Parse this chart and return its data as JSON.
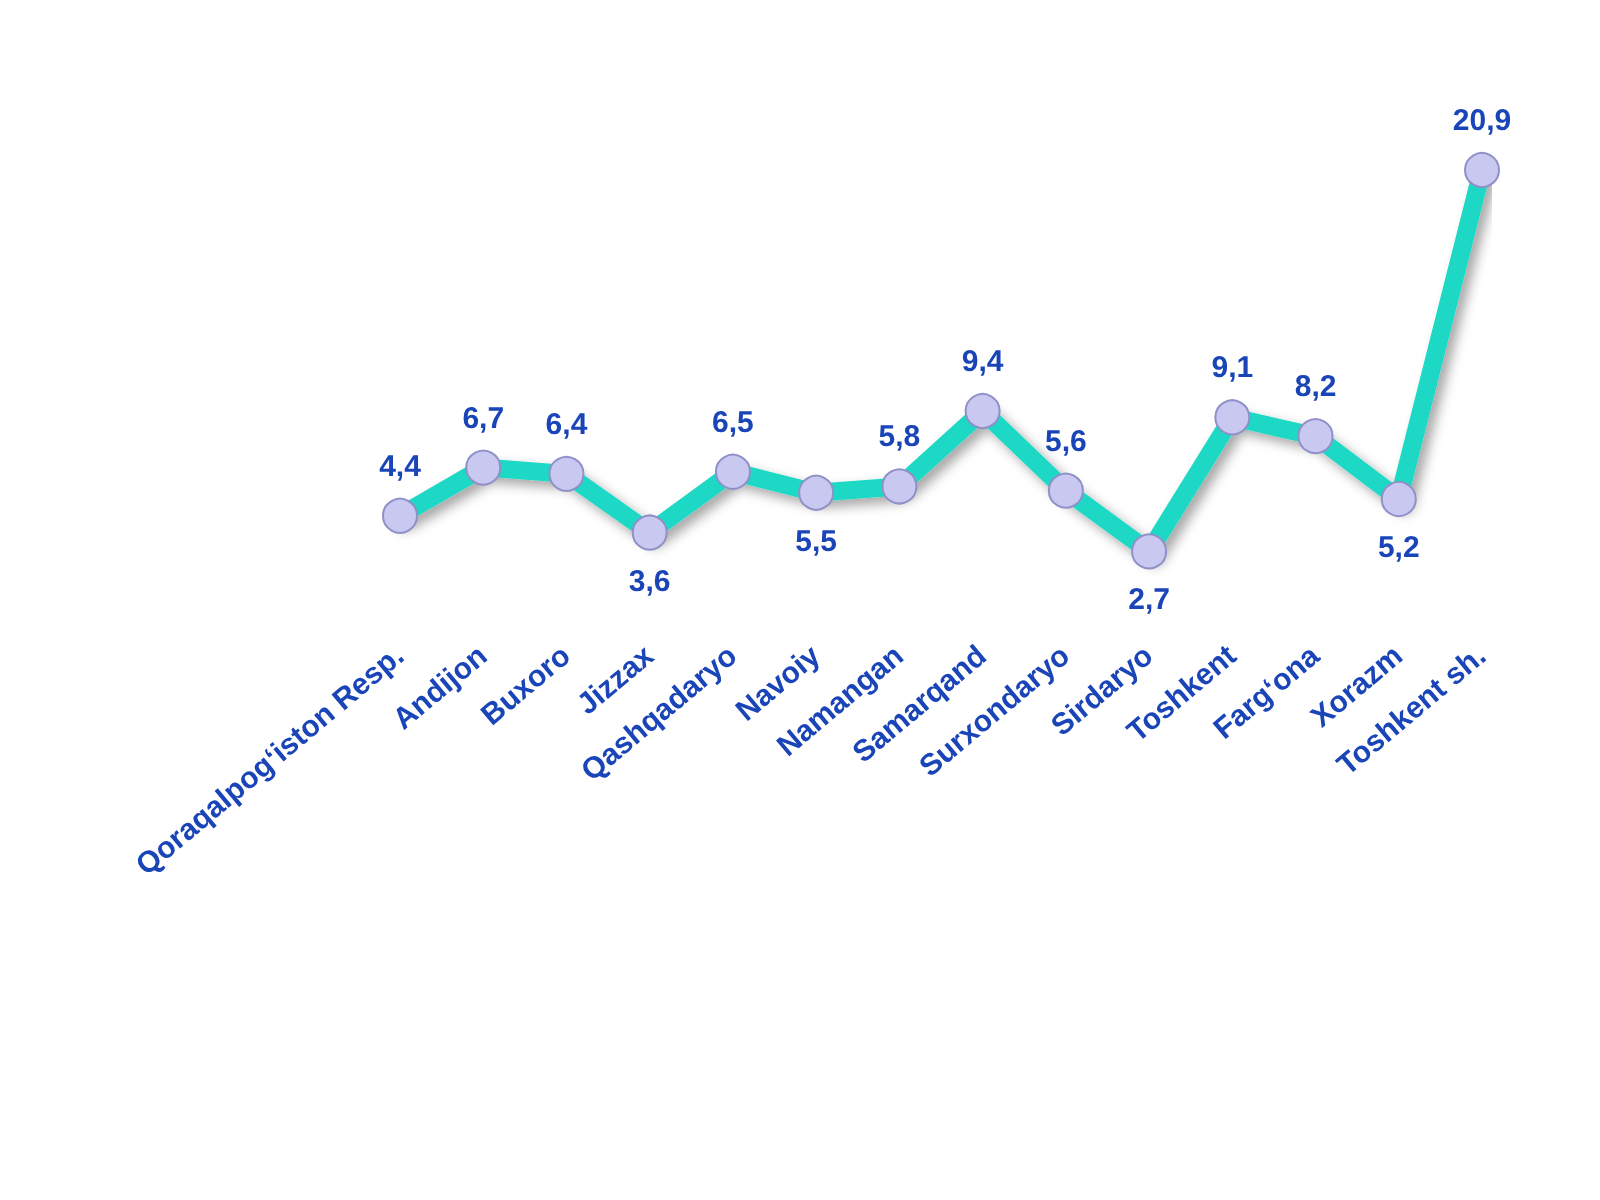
{
  "chart_data": {
    "type": "line",
    "categories": [
      "Qoraqalpog‘iston Resp.",
      "Andijon",
      "Buxoro",
      "Jizzax",
      "Qashqadaryo",
      "Navoiy",
      "Namangan",
      "Samarqand",
      "Surxondaryo",
      "Sirdaryo",
      "Toshkent",
      "Farg‘ona",
      "Xorazm",
      "Toshkent sh."
    ],
    "series": [
      {
        "color": "#1ed8c4",
        "values": [
          4.4,
          6.7,
          6.4,
          3.6,
          6.5,
          5.5,
          5.8,
          9.4,
          5.6,
          2.7,
          9.1,
          8.2,
          5.2,
          20.9
        ],
        "value_labels": [
          "4,4",
          "6,7",
          "6,4",
          "3,6",
          "6,5",
          "5,5",
          "5,8",
          "9,4",
          "5,6",
          "2,7",
          "9,1",
          "8,2",
          "5,2",
          "20,9"
        ]
      }
    ],
    "marker": "circle",
    "grid": false,
    "tick_labels": "x"
  }
}
